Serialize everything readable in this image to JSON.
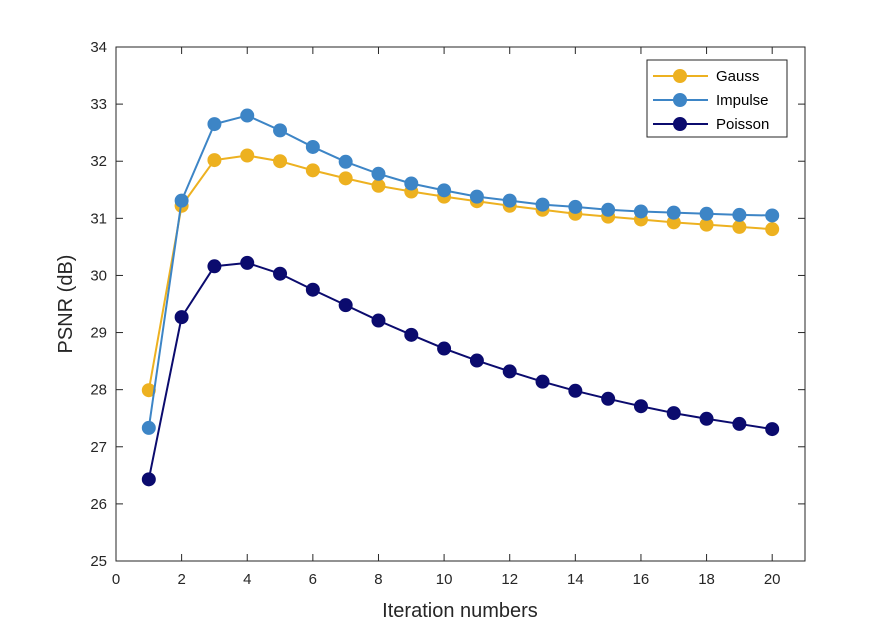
{
  "chart_data": {
    "type": "line",
    "title": "",
    "xlabel": "Iteration numbers",
    "ylabel": "PSNR (dB)",
    "xlim": [
      0,
      21
    ],
    "ylim": [
      25,
      34
    ],
    "xticks": [
      0,
      2,
      4,
      6,
      8,
      10,
      12,
      14,
      16,
      18,
      20
    ],
    "yticks": [
      25,
      26,
      27,
      28,
      29,
      30,
      31,
      32,
      33,
      34
    ],
    "x": [
      1,
      2,
      3,
      4,
      5,
      6,
      7,
      8,
      9,
      10,
      11,
      12,
      13,
      14,
      15,
      16,
      17,
      18,
      19,
      20
    ],
    "legend_position": "top-right",
    "grid": false,
    "series": [
      {
        "name": "Gauss",
        "color": "#EDB120",
        "values": [
          27.99,
          31.22,
          32.02,
          32.1,
          32.0,
          31.84,
          31.7,
          31.57,
          31.47,
          31.38,
          31.3,
          31.22,
          31.15,
          31.08,
          31.03,
          30.98,
          30.93,
          30.89,
          30.85,
          30.81
        ]
      },
      {
        "name": "Impulse",
        "color": "#3D85C6",
        "values": [
          27.33,
          31.31,
          32.65,
          32.8,
          32.54,
          32.25,
          31.99,
          31.78,
          31.61,
          31.49,
          31.38,
          31.31,
          31.24,
          31.2,
          31.15,
          31.12,
          31.1,
          31.08,
          31.06,
          31.05
        ]
      },
      {
        "name": "Poisson",
        "color": "#0B0B6E",
        "values": [
          26.43,
          29.27,
          30.16,
          30.22,
          30.03,
          29.75,
          29.48,
          29.21,
          28.96,
          28.72,
          28.51,
          28.32,
          28.14,
          27.98,
          27.84,
          27.71,
          27.59,
          27.49,
          27.4,
          27.31
        ]
      }
    ]
  }
}
